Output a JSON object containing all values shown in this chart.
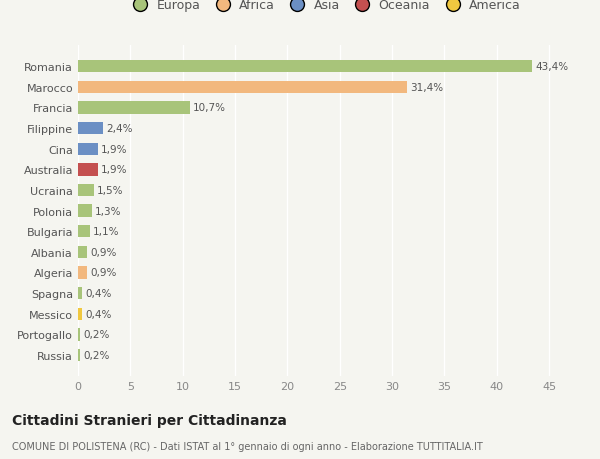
{
  "categories": [
    "Romania",
    "Marocco",
    "Francia",
    "Filippine",
    "Cina",
    "Australia",
    "Ucraina",
    "Polonia",
    "Bulgaria",
    "Albania",
    "Algeria",
    "Spagna",
    "Messico",
    "Portogallo",
    "Russia"
  ],
  "values": [
    43.4,
    31.4,
    10.7,
    2.4,
    1.9,
    1.9,
    1.5,
    1.3,
    1.1,
    0.9,
    0.9,
    0.4,
    0.4,
    0.2,
    0.2
  ],
  "labels": [
    "43,4%",
    "31,4%",
    "10,7%",
    "2,4%",
    "1,9%",
    "1,9%",
    "1,5%",
    "1,3%",
    "1,1%",
    "0,9%",
    "0,9%",
    "0,4%",
    "0,4%",
    "0,2%",
    "0,2%"
  ],
  "colors": [
    "#a8c47a",
    "#f2b87e",
    "#a8c47a",
    "#6b8fc4",
    "#6b8fc4",
    "#c45050",
    "#a8c47a",
    "#a8c47a",
    "#a8c47a",
    "#a8c47a",
    "#f2b87e",
    "#a8c47a",
    "#f0c840",
    "#a8c47a",
    "#a8c47a"
  ],
  "legend_labels": [
    "Europa",
    "Africa",
    "Asia",
    "Oceania",
    "America"
  ],
  "legend_colors": [
    "#a8c47a",
    "#f2b87e",
    "#6b8fc4",
    "#c45050",
    "#f0c840"
  ],
  "title": "Cittadini Stranieri per Cittadinanza",
  "subtitle": "COMUNE DI POLISTENA (RC) - Dati ISTAT al 1° gennaio di ogni anno - Elaborazione TUTTITALIA.IT",
  "xlim": [
    0,
    47
  ],
  "xticks": [
    0,
    5,
    10,
    15,
    20,
    25,
    30,
    35,
    40,
    45
  ],
  "bg_color": "#f5f5f0",
  "bar_height": 0.6,
  "label_fontsize": 7.5,
  "tick_fontsize": 8,
  "legend_fontsize": 9
}
